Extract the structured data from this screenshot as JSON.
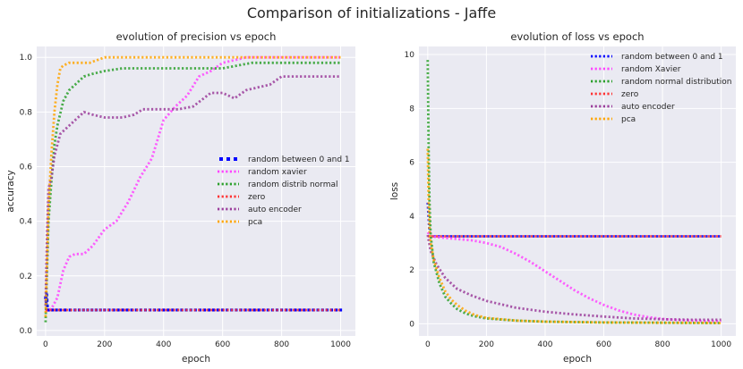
{
  "figure": {
    "title": "Comparison of initializations - Jaffe"
  },
  "chart_data": [
    {
      "type": "line",
      "title": "evolution of precision vs epoch",
      "xlabel": "epoch",
      "ylabel": "accuracy",
      "xlim": [
        -30,
        1050
      ],
      "ylim": [
        -0.02,
        1.04
      ],
      "xticks": [
        0,
        200,
        400,
        600,
        800,
        1000
      ],
      "yticks": [
        0.0,
        0.2,
        0.4,
        0.6,
        0.8,
        1.0
      ],
      "xtick_labels": [
        "0",
        "200",
        "400",
        "600",
        "800",
        "1000"
      ],
      "ytick_labels": [
        "0.0",
        "0.2",
        "0.4",
        "0.6",
        "0.8",
        "1.0"
      ],
      "grid": true,
      "legend_position": "center-right",
      "series": [
        {
          "name": "random between 0 and 1",
          "color": "#0000ff",
          "style": "squares",
          "x": [
            0,
            2,
            4,
            6,
            8,
            10,
            50,
            100,
            200,
            400,
            600,
            800,
            1000
          ],
          "y": [
            0.12,
            0.1,
            0.13,
            0.09,
            0.075,
            0.075,
            0.075,
            0.075,
            0.075,
            0.075,
            0.075,
            0.075,
            0.075
          ]
        },
        {
          "name": "random xavier",
          "color": "#ff44ff",
          "style": "dotted",
          "x": [
            0,
            20,
            40,
            60,
            80,
            100,
            130,
            160,
            200,
            240,
            280,
            320,
            360,
            400,
            440,
            480,
            520,
            560,
            600,
            640,
            680,
            700,
            800,
            900,
            1000
          ],
          "y": [
            0.07,
            0.08,
            0.12,
            0.22,
            0.27,
            0.28,
            0.28,
            0.31,
            0.37,
            0.4,
            0.47,
            0.56,
            0.63,
            0.77,
            0.82,
            0.86,
            0.93,
            0.95,
            0.98,
            0.99,
            1.0,
            1.0,
            1.0,
            1.0,
            1.0
          ]
        },
        {
          "name": "random distrib normal",
          "color": "#2ca02c",
          "style": "dotted",
          "x": [
            0,
            5,
            10,
            20,
            30,
            40,
            60,
            80,
            100,
            130,
            160,
            200,
            260,
            300,
            400,
            500,
            600,
            650,
            700,
            800,
            900,
            1000
          ],
          "y": [
            0.03,
            0.22,
            0.4,
            0.55,
            0.68,
            0.75,
            0.84,
            0.88,
            0.9,
            0.93,
            0.94,
            0.95,
            0.96,
            0.96,
            0.96,
            0.96,
            0.96,
            0.97,
            0.98,
            0.98,
            0.98,
            0.98
          ]
        },
        {
          "name": "zero",
          "color": "#ff3333",
          "style": "dotted",
          "x": [
            0,
            100,
            200,
            400,
            600,
            800,
            1000
          ],
          "y": [
            0.075,
            0.075,
            0.075,
            0.075,
            0.075,
            0.075,
            0.075
          ]
        },
        {
          "name": "auto encoder",
          "color": "#9b3d9b",
          "style": "dotted",
          "x": [
            0,
            5,
            10,
            20,
            30,
            50,
            80,
            100,
            130,
            160,
            200,
            260,
            300,
            330,
            400,
            450,
            500,
            560,
            600,
            640,
            680,
            720,
            760,
            800,
            900,
            1000
          ],
          "y": [
            0.09,
            0.35,
            0.52,
            0.56,
            0.64,
            0.72,
            0.75,
            0.77,
            0.8,
            0.79,
            0.78,
            0.78,
            0.79,
            0.81,
            0.81,
            0.81,
            0.82,
            0.87,
            0.87,
            0.85,
            0.88,
            0.89,
            0.9,
            0.93,
            0.93,
            0.93
          ]
        },
        {
          "name": "pca",
          "color": "#ffa500",
          "style": "dotted",
          "x": [
            0,
            5,
            10,
            15,
            20,
            30,
            40,
            50,
            60,
            80,
            100,
            150,
            200,
            300,
            400,
            600,
            800,
            1000
          ],
          "y": [
            0.05,
            0.25,
            0.45,
            0.55,
            0.65,
            0.8,
            0.9,
            0.96,
            0.97,
            0.98,
            0.98,
            0.98,
            1.0,
            1.0,
            1.0,
            1.0,
            1.0,
            1.0
          ]
        }
      ]
    },
    {
      "type": "line",
      "title": "evolution of loss vs epoch",
      "xlabel": "epoch",
      "ylabel": "loss",
      "xlim": [
        -30,
        1050
      ],
      "ylim": [
        -0.45,
        10.3
      ],
      "xticks": [
        0,
        200,
        400,
        600,
        800,
        1000
      ],
      "yticks": [
        0,
        2,
        4,
        6,
        8,
        10
      ],
      "xtick_labels": [
        "0",
        "200",
        "400",
        "600",
        "800",
        "1000"
      ],
      "ytick_labels": [
        "0",
        "2",
        "4",
        "6",
        "8",
        "10"
      ],
      "grid": true,
      "legend_position": "top-right",
      "series": [
        {
          "name": "random between 0 and 1",
          "color": "#0000ff",
          "style": "dotted",
          "x": [
            0,
            5,
            10,
            50,
            100,
            200,
            400,
            600,
            800,
            1000
          ],
          "y": [
            4.5,
            3.5,
            3.25,
            3.25,
            3.25,
            3.25,
            3.25,
            3.25,
            3.25,
            3.25
          ]
        },
        {
          "name": "random Xavier",
          "color": "#ff44ff",
          "style": "dotted",
          "x": [
            0,
            10,
            50,
            100,
            150,
            200,
            250,
            300,
            350,
            400,
            450,
            500,
            550,
            600,
            650,
            700,
            750,
            800,
            850,
            900,
            950,
            1000
          ],
          "y": [
            3.4,
            3.25,
            3.2,
            3.15,
            3.1,
            3.0,
            2.85,
            2.6,
            2.3,
            1.95,
            1.6,
            1.25,
            0.95,
            0.7,
            0.5,
            0.35,
            0.25,
            0.18,
            0.14,
            0.12,
            0.1,
            0.1
          ]
        },
        {
          "name": "random normal distribution",
          "color": "#2ca02c",
          "style": "dotted",
          "x": [
            0,
            3,
            6,
            10,
            20,
            40,
            60,
            80,
            100,
            130,
            160,
            200,
            300,
            400,
            600,
            800,
            1000
          ],
          "y": [
            9.8,
            6.5,
            4.5,
            3.3,
            2.3,
            1.5,
            1.0,
            0.75,
            0.55,
            0.38,
            0.28,
            0.2,
            0.12,
            0.08,
            0.05,
            0.04,
            0.03
          ]
        },
        {
          "name": "zero",
          "color": "#ff3333",
          "style": "dotted",
          "x": [
            0,
            100,
            200,
            400,
            600,
            800,
            1000
          ],
          "y": [
            3.25,
            3.25,
            3.25,
            3.25,
            3.25,
            3.25,
            3.25
          ]
        },
        {
          "name": "auto encoder",
          "color": "#9b3d9b",
          "style": "dotted",
          "x": [
            0,
            10,
            30,
            60,
            100,
            150,
            200,
            300,
            400,
            500,
            600,
            700,
            800,
            900,
            1000
          ],
          "y": [
            3.3,
            2.7,
            2.2,
            1.7,
            1.3,
            1.05,
            0.85,
            0.6,
            0.45,
            0.35,
            0.27,
            0.2,
            0.17,
            0.15,
            0.15
          ]
        },
        {
          "name": "pca",
          "color": "#ffa500",
          "style": "dotted",
          "x": [
            0,
            3,
            6,
            10,
            20,
            40,
            60,
            80,
            100,
            130,
            160,
            200,
            300,
            400,
            600,
            800,
            1000
          ],
          "y": [
            6.5,
            4.5,
            3.5,
            3.0,
            2.4,
            1.7,
            1.2,
            0.9,
            0.7,
            0.48,
            0.33,
            0.22,
            0.12,
            0.08,
            0.05,
            0.04,
            0.03
          ]
        }
      ]
    }
  ]
}
